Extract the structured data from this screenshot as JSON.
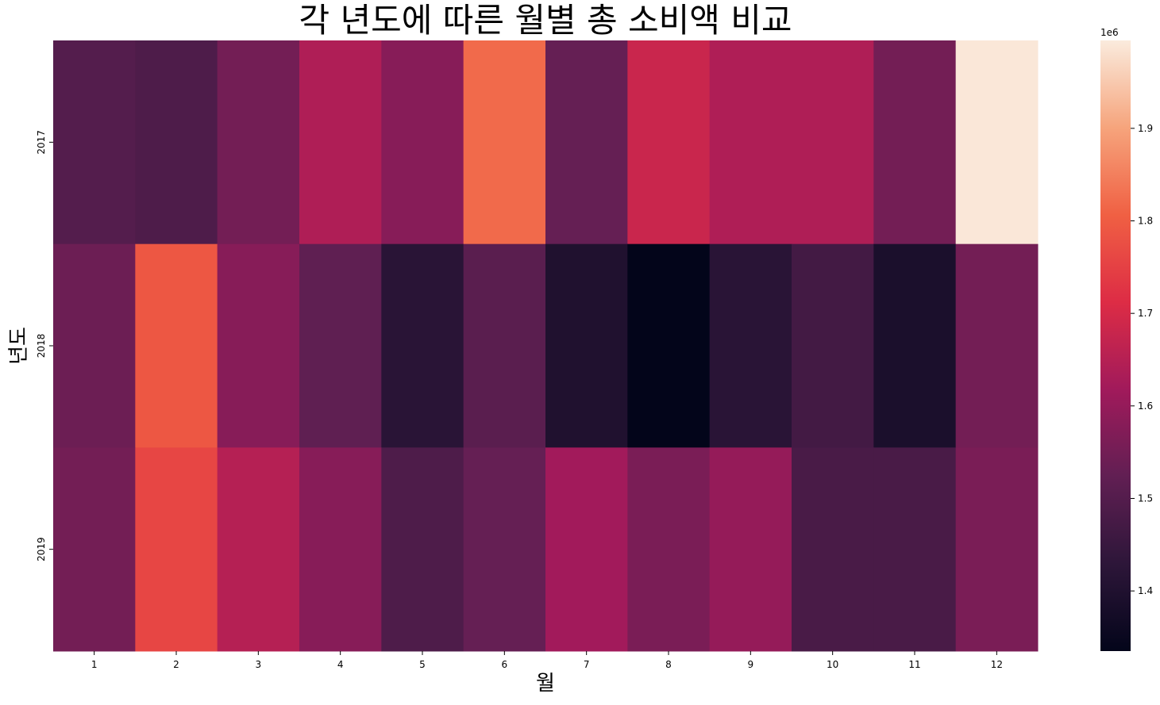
{
  "chart_data": {
    "type": "heatmap",
    "title": "각 년도에 따른 월별 총 소비액 비교",
    "xlabel": "월",
    "ylabel": "년도",
    "x_categories": [
      "1",
      "2",
      "3",
      "4",
      "5",
      "6",
      "7",
      "8",
      "9",
      "10",
      "11",
      "12"
    ],
    "y_categories": [
      "2017",
      "2018",
      "2019"
    ],
    "values": [
      [
        1500000,
        1490000,
        1550000,
        1640000,
        1580000,
        1820000,
        1530000,
        1680000,
        1640000,
        1640000,
        1550000,
        1990000
      ],
      [
        1540000,
        1790000,
        1580000,
        1520000,
        1420000,
        1510000,
        1400000,
        1335000,
        1420000,
        1470000,
        1390000,
        1550000
      ],
      [
        1550000,
        1760000,
        1650000,
        1580000,
        1490000,
        1530000,
        1620000,
        1560000,
        1600000,
        1480000,
        1480000,
        1560000
      ]
    ],
    "colorbar": {
      "min": 1335000,
      "max": 1995000,
      "ticks": [
        1.4,
        1.5,
        1.6,
        1.7,
        1.8,
        1.9
      ],
      "tick_labels": [
        "1.4",
        "1.5",
        "1.6",
        "1.7",
        "1.8",
        "1.9"
      ],
      "multiplier_label": "1e6",
      "multiplier": 1000000
    },
    "colormap": "rocket",
    "colormap_stops": [
      "#03051a",
      "#2d1639",
      "#611f53",
      "#a11a5b",
      "#dd2c45",
      "#f06043",
      "#f6a47c",
      "#faebdd"
    ]
  }
}
